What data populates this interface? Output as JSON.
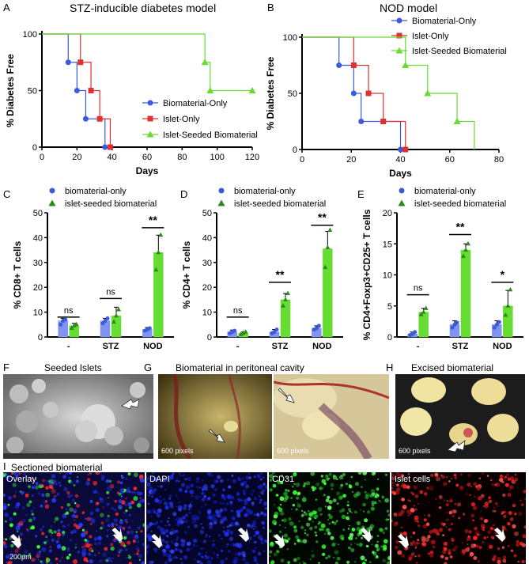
{
  "panels": {
    "A": {
      "letter": "A",
      "title": "STZ-inducible diabetes model"
    },
    "B": {
      "letter": "B",
      "title": "NOD model"
    },
    "C": {
      "letter": "C"
    },
    "D": {
      "letter": "D"
    },
    "E": {
      "letter": "E"
    },
    "F": {
      "letter": "F",
      "caption": "Seeded Islets"
    },
    "G": {
      "letter": "G",
      "caption": "Biomaterial in peritoneal cavity",
      "scale_left": "600 pixels",
      "scale_right": "600 pixels"
    },
    "H": {
      "letter": "H",
      "caption": "Excised biomaterial",
      "scale": "600 pixels"
    },
    "I": {
      "letter": "I",
      "caption": "Sectioned biomaterial",
      "channels": [
        "Overlay",
        "DAPI",
        "CD31",
        "Islet cells"
      ],
      "scale": "200μm"
    }
  },
  "colors": {
    "blue": "#3b5bdb",
    "red": "#e03131",
    "green": "#66dd33",
    "bar_blue": "#7f94f0",
    "bar_green": "#66dd33"
  },
  "chart_data": [
    {
      "id": "A",
      "type": "line",
      "title": "STZ-inducible diabetes model",
      "xlabel": "Days",
      "ylabel": "% Diabetes Free",
      "xlim": [
        0,
        120
      ],
      "ylim": [
        0,
        100
      ],
      "xticks": [
        0,
        20,
        40,
        60,
        80,
        100,
        120
      ],
      "yticks": [
        0,
        50,
        100
      ],
      "legend_position": "center-right",
      "series": [
        {
          "name": "Biomaterial-Only",
          "color": "blue",
          "points": [
            [
              0,
              100
            ],
            [
              15,
              100
            ],
            [
              15,
              75
            ],
            [
              20,
              75
            ],
            [
              20,
              50
            ],
            [
              25,
              50
            ],
            [
              25,
              25
            ],
            [
              36,
              25
            ],
            [
              36,
              0
            ],
            [
              38,
              0
            ]
          ],
          "markers": [
            [
              15,
              75
            ],
            [
              20,
              50
            ],
            [
              25,
              25
            ],
            [
              36,
              0
            ]
          ]
        },
        {
          "name": "Islet-Only",
          "color": "red",
          "points": [
            [
              0,
              100
            ],
            [
              22,
              100
            ],
            [
              22,
              75
            ],
            [
              28,
              75
            ],
            [
              28,
              50
            ],
            [
              33,
              50
            ],
            [
              33,
              25
            ],
            [
              39,
              25
            ],
            [
              39,
              0
            ],
            [
              40,
              0
            ]
          ],
          "markers": [
            [
              22,
              75
            ],
            [
              28,
              50
            ],
            [
              33,
              25
            ],
            [
              39,
              0
            ]
          ]
        },
        {
          "name": "Islet-Seeded Biomaterial",
          "color": "green",
          "points": [
            [
              0,
              100
            ],
            [
              93,
              100
            ],
            [
              93,
              75
            ],
            [
              96,
              75
            ],
            [
              96,
              50
            ],
            [
              120,
              50
            ]
          ],
          "markers": [
            [
              93,
              75
            ],
            [
              96,
              50
            ],
            [
              120,
              50
            ]
          ]
        }
      ]
    },
    {
      "id": "B",
      "type": "line",
      "title": "NOD model",
      "xlabel": "Days",
      "ylabel": "% Diabetes Free",
      "xlim": [
        0,
        80
      ],
      "ylim": [
        0,
        100
      ],
      "xticks": [
        0,
        20,
        40,
        60,
        80
      ],
      "yticks": [
        0,
        50,
        100
      ],
      "legend_position": "top-right",
      "series": [
        {
          "name": "Biomaterial-Only",
          "color": "blue",
          "points": [
            [
              0,
              100
            ],
            [
              15,
              100
            ],
            [
              15,
              75
            ],
            [
              21,
              75
            ],
            [
              21,
              50
            ],
            [
              24,
              50
            ],
            [
              24,
              25
            ],
            [
              40,
              25
            ],
            [
              40,
              0
            ],
            [
              41,
              0
            ]
          ],
          "markers": [
            [
              15,
              75
            ],
            [
              21,
              50
            ],
            [
              24,
              25
            ],
            [
              40,
              0
            ]
          ]
        },
        {
          "name": "Islet-Only",
          "color": "red",
          "points": [
            [
              0,
              100
            ],
            [
              21,
              100
            ],
            [
              21,
              75
            ],
            [
              27,
              75
            ],
            [
              27,
              50
            ],
            [
              33,
              50
            ],
            [
              33,
              25
            ],
            [
              42,
              25
            ],
            [
              42,
              0
            ],
            [
              43,
              0
            ]
          ],
          "markers": [
            [
              21,
              75
            ],
            [
              27,
              50
            ],
            [
              33,
              25
            ],
            [
              42,
              0
            ]
          ]
        },
        {
          "name": "Islet-Seeded Biomaterial",
          "color": "green",
          "points": [
            [
              0,
              100
            ],
            [
              42,
              100
            ],
            [
              42,
              75
            ],
            [
              51,
              75
            ],
            [
              51,
              50
            ],
            [
              63,
              50
            ],
            [
              63,
              25
            ],
            [
              70,
              25
            ],
            [
              70,
              0
            ]
          ],
          "markers": [
            [
              42,
              75
            ],
            [
              51,
              50
            ],
            [
              63,
              25
            ]
          ]
        }
      ]
    },
    {
      "id": "C",
      "type": "bar",
      "ylabel": "% CD8+ T cells",
      "ylim": [
        0,
        50
      ],
      "yticks": [
        0,
        10,
        20,
        30,
        40,
        50
      ],
      "categories": [
        "-",
        "STZ",
        "NOD"
      ],
      "series": [
        {
          "name": "biomaterial-only",
          "color": "bar_blue",
          "values": [
            6.5,
            6.5,
            3
          ],
          "errors": [
            1,
            1,
            0.8
          ],
          "points": [
            [
              5,
              6.5,
              7
            ],
            [
              5.5,
              6.5,
              7.5
            ],
            [
              2.5,
              3,
              3.5
            ]
          ]
        },
        {
          "name": "islet-seeded biomaterial",
          "color": "bar_green",
          "values": [
            4.5,
            8.5,
            34
          ],
          "errors": [
            1,
            3.5,
            7
          ],
          "points": [
            [
              3.5,
              4.5,
              5
            ],
            [
              6,
              8.5,
              11
            ],
            [
              27,
              34,
              41
            ]
          ]
        }
      ],
      "significance": [
        {
          "cat": 0,
          "label": "ns",
          "y": 8
        },
        {
          "cat": 1,
          "label": "ns",
          "y": 15.5
        },
        {
          "cat": 2,
          "label": "**",
          "y": 44
        }
      ]
    },
    {
      "id": "D",
      "type": "bar",
      "ylabel": "% CD4+ T cells",
      "ylim": [
        0,
        50
      ],
      "yticks": [
        0,
        10,
        20,
        30,
        40,
        50
      ],
      "categories": [
        "-",
        "STZ",
        "NOD"
      ],
      "series": [
        {
          "name": "biomaterial-only",
          "color": "bar_blue",
          "values": [
            2,
            2,
            3.5
          ],
          "errors": [
            0.8,
            1,
            1
          ],
          "points": [
            [
              1.5,
              2,
              2.5
            ],
            [
              1.5,
              2,
              3
            ],
            [
              3,
              3.5,
              4.5
            ]
          ]
        },
        {
          "name": "islet-seeded biomaterial",
          "color": "bar_green",
          "values": [
            1.5,
            15,
            35.5
          ],
          "errors": [
            0.5,
            2.5,
            7
          ],
          "points": [
            [
              1,
              1.5,
              2
            ],
            [
              12.5,
              15,
              17.5
            ],
            [
              28,
              36,
              43
            ]
          ]
        }
      ],
      "significance": [
        {
          "cat": 0,
          "label": "ns",
          "y": 8
        },
        {
          "cat": 1,
          "label": "**",
          "y": 22
        },
        {
          "cat": 2,
          "label": "**",
          "y": 45
        }
      ]
    },
    {
      "id": "E",
      "type": "bar",
      "ylabel": "% CD4+Foxp3+CD25+ T cells",
      "ylim": [
        0,
        20
      ],
      "yticks": [
        0,
        5,
        10,
        15,
        20
      ],
      "categories": [
        "-",
        "STZ",
        "NOD"
      ],
      "series": [
        {
          "name": "biomaterial-only",
          "color": "bar_blue",
          "values": [
            0.5,
            2,
            2
          ],
          "errors": [
            0.3,
            0.6,
            0.6
          ],
          "points": [
            [
              0.3,
              0.5,
              0.8
            ],
            [
              1.5,
              2,
              2.3
            ],
            [
              1.5,
              2,
              2.4
            ]
          ]
        },
        {
          "name": "islet-seeded biomaterial",
          "color": "bar_green",
          "values": [
            4,
            14,
            5
          ],
          "errors": [
            0.6,
            1,
            2.5
          ],
          "points": [
            [
              3.6,
              4,
              4.6
            ],
            [
              13,
              14,
              15
            ],
            [
              3.5,
              5,
              7.6
            ]
          ]
        }
      ],
      "significance": [
        {
          "cat": 0,
          "label": "ns",
          "y": 6.8
        },
        {
          "cat": 1,
          "label": "**",
          "y": 16.5
        },
        {
          "cat": 2,
          "label": "*",
          "y": 8.8
        }
      ]
    }
  ]
}
